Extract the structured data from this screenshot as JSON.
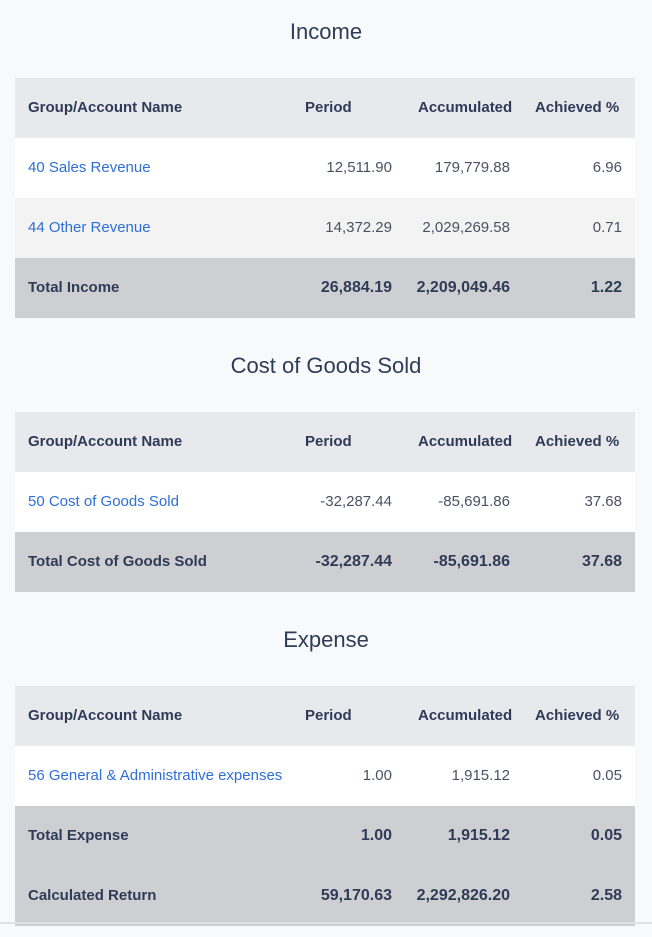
{
  "sections": [
    {
      "title": "Income",
      "headers": [
        "Group/Account Name",
        "Period",
        "Accumulated",
        "Achieved %"
      ],
      "rows": [
        {
          "name": "40 Sales Revenue",
          "period": "12,511.90",
          "accumulated": "179,779.88",
          "achieved": "6.96"
        },
        {
          "name": "44 Other Revenue",
          "period": "14,372.29",
          "accumulated": "2,029,269.58",
          "achieved": "0.71"
        }
      ],
      "total": {
        "name": "Total Income",
        "period": "26,884.19",
        "accumulated": "2,209,049.46",
        "achieved": "1.22"
      }
    },
    {
      "title": "Cost of Goods Sold",
      "headers": [
        "Group/Account Name",
        "Period",
        "Accumulated",
        "Achieved %"
      ],
      "rows": [
        {
          "name": "50 Cost of Goods Sold",
          "period": "-32,287.44",
          "accumulated": "-85,691.86",
          "achieved": "37.68"
        }
      ],
      "total": {
        "name": "Total Cost of Goods Sold",
        "period": "-32,287.44",
        "accumulated": "-85,691.86",
        "achieved": "37.68"
      }
    },
    {
      "title": "Expense",
      "headers": [
        "Group/Account Name",
        "Period",
        "Accumulated",
        "Achieved %"
      ],
      "rows": [
        {
          "name": "56 General & Administrative expenses",
          "period": "1.00",
          "accumulated": "1,915.12",
          "achieved": "0.05"
        }
      ],
      "total": {
        "name": "Total Expense",
        "period": "1.00",
        "accumulated": "1,915.12",
        "achieved": "0.05"
      }
    }
  ],
  "calculated_return": {
    "name": "Calculated Return",
    "period": "59,170.63",
    "accumulated": "2,292,826.20",
    "achieved": "2.58"
  }
}
